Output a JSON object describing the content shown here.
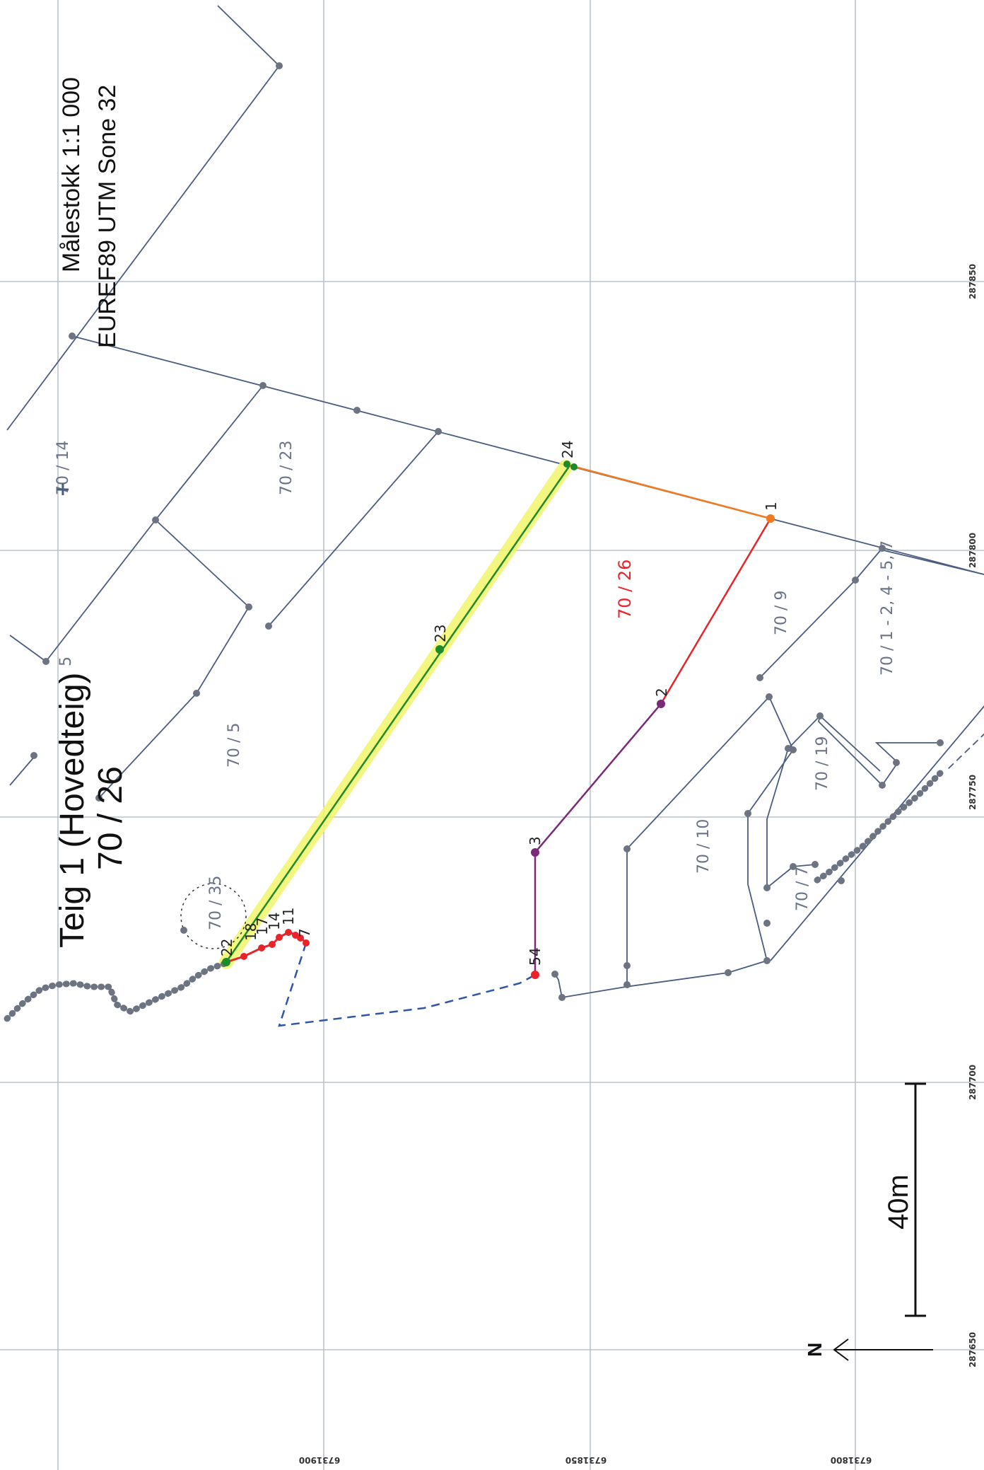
{
  "title": {
    "line1": "Teig 1 (Hovedteig)",
    "line2": "70 / 26"
  },
  "map_info": {
    "scale": "Målestokk 1:1 000",
    "projection": "EUREF89 UTM Sone 32"
  },
  "scale_bar": {
    "label": "40m"
  },
  "north_arrow": {
    "label": "N"
  },
  "grid_labels": {
    "east": [
      "287850",
      "287800",
      "287750",
      "287700",
      "287650"
    ],
    "north": [
      "6731900",
      "6731850",
      "6731800"
    ]
  },
  "parcels": {
    "p14": "70 / 14",
    "p23": "70 / 23",
    "p26": "70 / 26",
    "p9": "70 / 9",
    "p1": "70 / 1 - 2, 4 - 5, 7",
    "p5": "70 / 5",
    "p19": "70 / 19",
    "p10": "70 / 10",
    "p7": "70 / 7",
    "p35": "70 / 35",
    "p5b": "5"
  },
  "points": {
    "p1": "1",
    "p2": "2",
    "p3": "3",
    "p4": "4",
    "p5": "5",
    "p7": "7",
    "p11": "11",
    "p14": "14",
    "p17": "17",
    "p18": "18",
    "p22": "22",
    "p23": "23",
    "p24": "24"
  },
  "colors": {
    "boundary": "#4a5c80",
    "highlight": "#f2f56a",
    "green": "#1f8a2a",
    "red": "#e8232a",
    "purple": "#7a2a78",
    "orange": "#f07a20",
    "dashed": "#2f55a6"
  }
}
